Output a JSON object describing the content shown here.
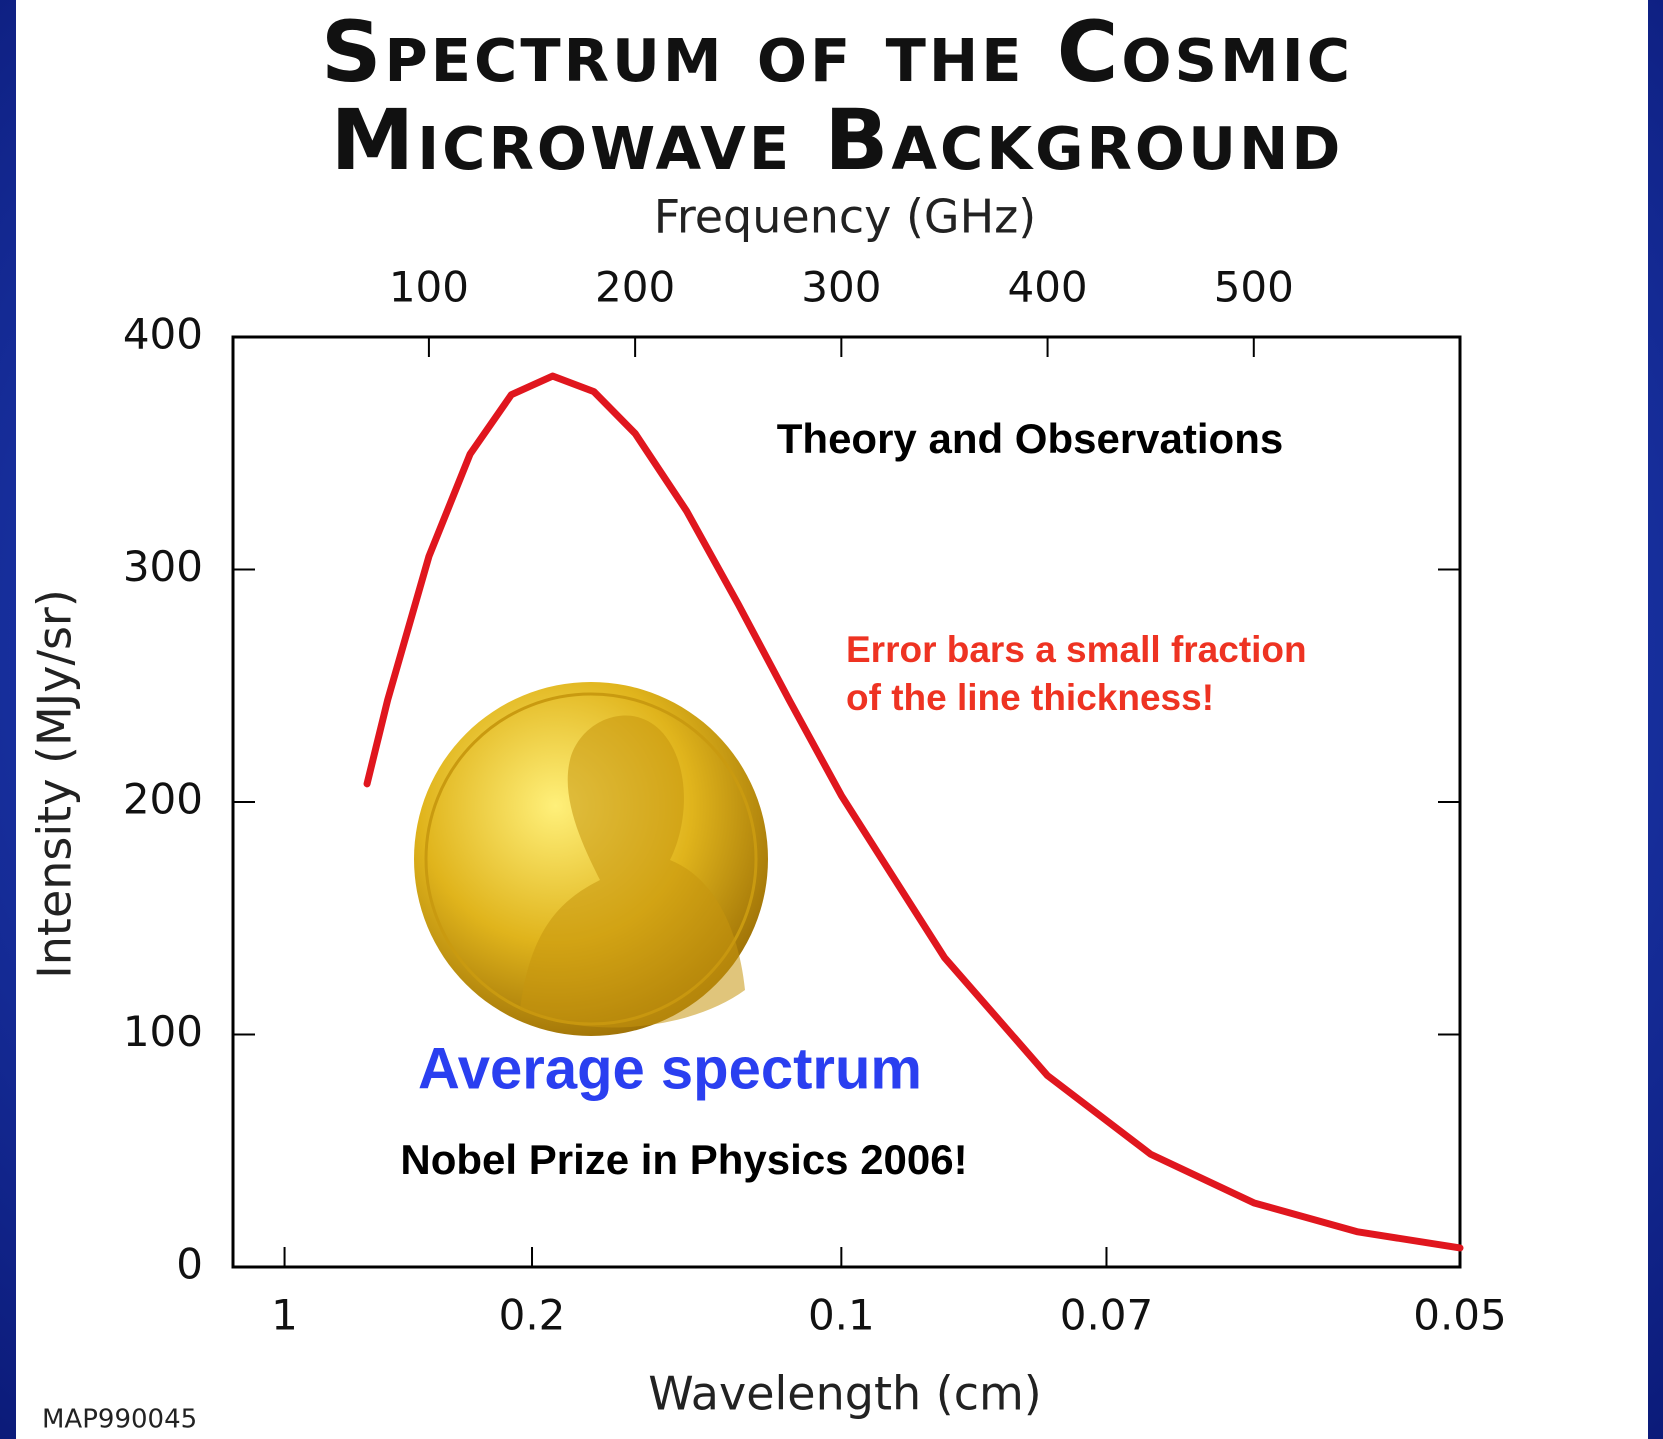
{
  "chart_data": {
    "type": "line",
    "title": [
      "Spectrum of the Cosmic",
      "Microwave Background"
    ],
    "xlabel_top": "Frequency (GHz)",
    "xlabel": "Wavelength (cm)",
    "ylabel": "Intensity (MJy/sr)",
    "xlim": [
      5,
      600
    ],
    "xticks_top": [
      100,
      200,
      300,
      400,
      500
    ],
    "xticks": [
      {
        "value": 30,
        "label": "1"
      },
      {
        "value": 150,
        "label": "0.2"
      },
      {
        "value": 300,
        "label": "0.1"
      },
      {
        "value": 428.57,
        "label": "0.07"
      },
      {
        "value": 600,
        "label": "0.05"
      }
    ],
    "ylim": [
      0,
      400
    ],
    "yticks": [
      0,
      100,
      200,
      300,
      400
    ],
    "x": [
      70,
      80,
      100,
      120,
      140,
      160,
      180,
      200,
      225,
      250,
      275,
      300,
      350,
      400,
      450,
      500,
      550,
      600
    ],
    "series": [
      {
        "color": "#e0161e",
        "values": [
          207.8,
          243.9,
          305.6,
          349.7,
          375.2,
          383.2,
          376.5,
          358.5,
          325.1,
          285.1,
          243.4,
          202.8,
          133.1,
          82.3,
          48.5,
          27.6,
          15.2,
          8.2
        ]
      }
    ],
    "annotations": [
      {
        "text": "Theory and Observations",
        "color": "#000000"
      },
      {
        "text": "Error bars a small fraction",
        "color": "#ee3322"
      },
      {
        "text": "of the line thickness!",
        "color": "#ee3322"
      },
      {
        "text": "Average spectrum",
        "color": "#2a3ff0"
      },
      {
        "text": "Nobel Prize in Physics 2006!",
        "color": "#000000"
      }
    ],
    "credit": "MAP990045"
  }
}
